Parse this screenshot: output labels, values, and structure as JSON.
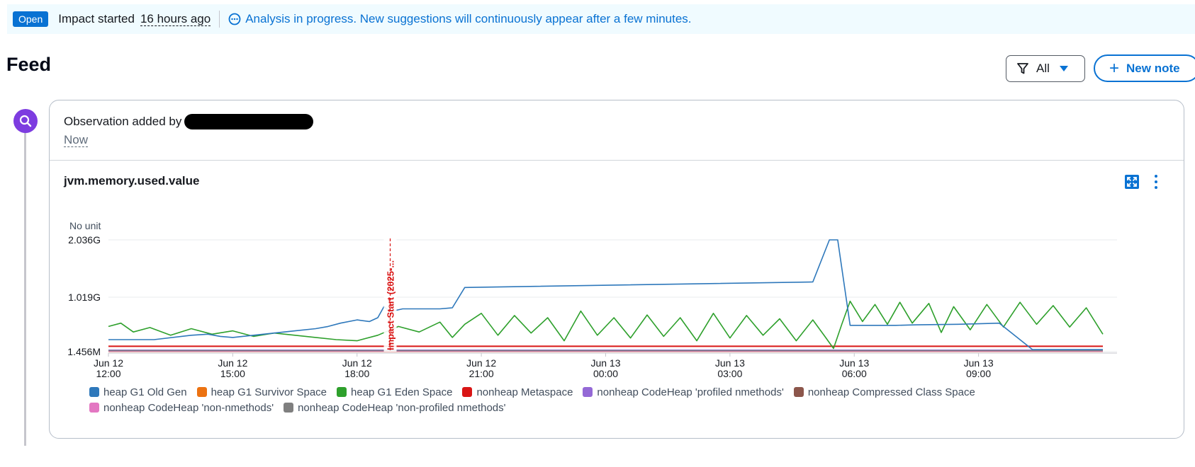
{
  "banner": {
    "status": "Open",
    "impact_label": "Impact started",
    "impact_time": "16 hours ago",
    "analysis_text": "Analysis in progress. New suggestions will continuously appear after a few minutes."
  },
  "feed": {
    "title": "Feed",
    "filter_label": "All",
    "new_note_label": "New note"
  },
  "observation": {
    "prefix": "Observation added by",
    "time": "Now"
  },
  "colors": {
    "accent": "#0972d3",
    "timeline_icon": "#7d3ce0",
    "impact_marker": "#d91515"
  },
  "chart_data": {
    "type": "line",
    "title": "jvm.memory.used.value",
    "ylabel": "No unit",
    "y_ticks": [
      "2.036G",
      "1.019G",
      "1.456M"
    ],
    "x_ticks": [
      {
        "date": "Jun 12",
        "time": "12:00"
      },
      {
        "date": "Jun 12",
        "time": "15:00"
      },
      {
        "date": "Jun 12",
        "time": "18:00"
      },
      {
        "date": "Jun 12",
        "time": "21:00"
      },
      {
        "date": "Jun 13",
        "time": "00:00"
      },
      {
        "date": "Jun 13",
        "time": "03:00"
      },
      {
        "date": "Jun 13",
        "time": "06:00"
      },
      {
        "date": "Jun 13",
        "time": "09:00"
      }
    ],
    "x_range_hours": [
      0,
      24
    ],
    "ylim_gb": [
      0.0015,
      2.036
    ],
    "marker": {
      "label": "Impact Start (2025-...",
      "hour": 6.8
    },
    "series": [
      {
        "name": "heap G1 Old Gen",
        "color": "#2e78bb",
        "points": [
          [
            0,
            0.22
          ],
          [
            1.1,
            0.22
          ],
          [
            2,
            0.3
          ],
          [
            2.4,
            0.32
          ],
          [
            2.7,
            0.28
          ],
          [
            3,
            0.26
          ],
          [
            3.5,
            0.3
          ],
          [
            4,
            0.34
          ],
          [
            4.5,
            0.38
          ],
          [
            5,
            0.42
          ],
          [
            5.3,
            0.46
          ],
          [
            5.6,
            0.52
          ],
          [
            6,
            0.58
          ],
          [
            6.3,
            0.55
          ],
          [
            6.5,
            0.62
          ],
          [
            6.65,
            0.82
          ],
          [
            6.8,
            0.73
          ],
          [
            7.1,
            0.78
          ],
          [
            8,
            0.78
          ],
          [
            8.3,
            0.8
          ],
          [
            8.6,
            1.17
          ],
          [
            17,
            1.27
          ],
          [
            17.4,
            2.036
          ],
          [
            17.6,
            2.036
          ],
          [
            17.9,
            0.48
          ],
          [
            19,
            0.48
          ],
          [
            19.5,
            0.49
          ],
          [
            20.5,
            0.5
          ],
          [
            21.5,
            0.52
          ],
          [
            22.3,
            0.04
          ],
          [
            24,
            0.04
          ]
        ]
      },
      {
        "name": "heap G1 Survivor Space",
        "color": "#ec7211",
        "points": [
          [
            0,
            0.005
          ],
          [
            24,
            0.005
          ]
        ]
      },
      {
        "name": "heap G1 Eden Space",
        "color": "#2ea02c",
        "points": [
          [
            0,
            0.46
          ],
          [
            0.3,
            0.52
          ],
          [
            0.6,
            0.36
          ],
          [
            1,
            0.44
          ],
          [
            1.5,
            0.3
          ],
          [
            2,
            0.42
          ],
          [
            2.5,
            0.32
          ],
          [
            3,
            0.38
          ],
          [
            3.5,
            0.28
          ],
          [
            4,
            0.34
          ],
          [
            4.5,
            0.3
          ],
          [
            5,
            0.26
          ],
          [
            5.5,
            0.22
          ],
          [
            6,
            0.2
          ],
          [
            6.5,
            0.3
          ],
          [
            7,
            0.46
          ],
          [
            7.5,
            0.36
          ],
          [
            8,
            0.54
          ],
          [
            8.3,
            0.26
          ],
          [
            8.6,
            0.5
          ],
          [
            9,
            0.7
          ],
          [
            9.4,
            0.3
          ],
          [
            9.8,
            0.66
          ],
          [
            10.2,
            0.34
          ],
          [
            10.6,
            0.62
          ],
          [
            11,
            0.2
          ],
          [
            11.4,
            0.74
          ],
          [
            11.8,
            0.3
          ],
          [
            12.2,
            0.62
          ],
          [
            12.6,
            0.25
          ],
          [
            13,
            0.67
          ],
          [
            13.4,
            0.28
          ],
          [
            13.8,
            0.62
          ],
          [
            14.2,
            0.2
          ],
          [
            14.6,
            0.7
          ],
          [
            15,
            0.25
          ],
          [
            15.4,
            0.66
          ],
          [
            15.8,
            0.3
          ],
          [
            16.2,
            0.6
          ],
          [
            16.6,
            0.2
          ],
          [
            17,
            0.58
          ],
          [
            17.3,
            0.27
          ],
          [
            17.5,
            0.06
          ],
          [
            17.7,
            0.5
          ],
          [
            17.9,
            0.92
          ],
          [
            18.2,
            0.55
          ],
          [
            18.5,
            0.86
          ],
          [
            18.8,
            0.5
          ],
          [
            19.1,
            0.9
          ],
          [
            19.4,
            0.52
          ],
          [
            19.8,
            0.88
          ],
          [
            20.1,
            0.35
          ],
          [
            20.4,
            0.82
          ],
          [
            20.8,
            0.4
          ],
          [
            21.2,
            0.86
          ],
          [
            21.6,
            0.45
          ],
          [
            22,
            0.9
          ],
          [
            22.4,
            0.5
          ],
          [
            22.8,
            0.84
          ],
          [
            23.2,
            0.45
          ],
          [
            23.6,
            0.8
          ],
          [
            24,
            0.32
          ]
        ]
      },
      {
        "name": "nonheap Metaspace",
        "color": "#d91515",
        "points": [
          [
            0,
            0.1
          ],
          [
            24,
            0.1
          ]
        ]
      },
      {
        "name": "nonheap CodeHeap 'profiled nmethods'",
        "color": "#9469d6",
        "points": [
          [
            0,
            0.03
          ],
          [
            24,
            0.03
          ]
        ]
      },
      {
        "name": "nonheap Compressed Class Space",
        "color": "#8c564b",
        "points": [
          [
            0,
            0.012
          ],
          [
            24,
            0.012
          ]
        ]
      },
      {
        "name": "nonheap CodeHeap 'non-nmethods'",
        "color": "#e377c2",
        "points": [
          [
            0,
            0.008
          ],
          [
            24,
            0.008
          ]
        ]
      },
      {
        "name": "nonheap CodeHeap 'non-profiled nmethods'",
        "color": "#7f7f7f",
        "points": [
          [
            0,
            0.02
          ],
          [
            24,
            0.02
          ]
        ]
      }
    ]
  }
}
